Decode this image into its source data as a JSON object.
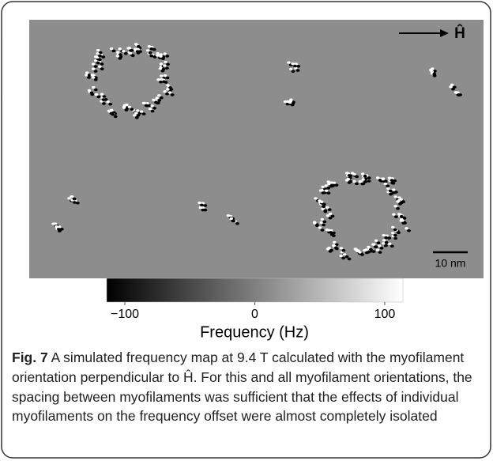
{
  "figure": {
    "arrow_label": "Ĥ",
    "scale_bar": "10 nm",
    "colorbar": {
      "label": "Frequency (Hz)",
      "lim": [
        -114,
        114
      ],
      "ticks": [
        {
          "value": -100,
          "label": "−100"
        },
        0,
        100
      ]
    },
    "caption": {
      "label": "Fig. 7",
      "text": "A simulated frequency map at 9.4 T calculated with the myofilament orientation perpendicular to Ĥ. For this and all myofilament orientations, the spacing between myofilaments was sufficient that the effects of individual myofilaments on the frequency offset were almost completely isolated"
    }
  }
}
